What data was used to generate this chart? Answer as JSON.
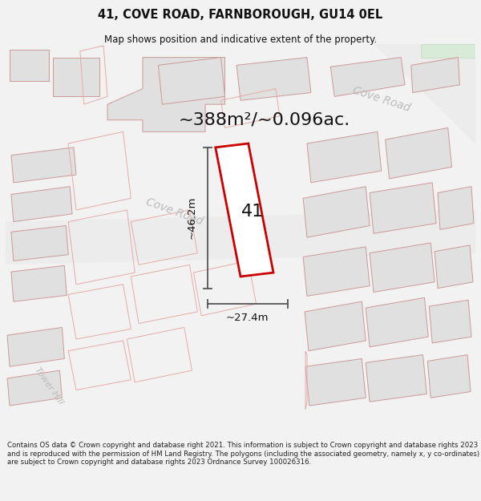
{
  "title": "41, COVE ROAD, FARNBOROUGH, GU14 0EL",
  "subtitle": "Map shows position and indicative extent of the property.",
  "area_text": "~388m²/~0.096ac.",
  "dim_vertical": "~46.2m",
  "dim_horizontal": "~27.4m",
  "label_41": "41",
  "road_label_lower": "Cove Road",
  "road_label_upper": "Cove Road",
  "tower_hill_label": "Tower Hill",
  "footer": "Contains OS data © Crown copyright and database right 2021. This information is subject to Crown copyright and database rights 2023 and is reproduced with the permission of HM Land Registry. The polygons (including the associated geometry, namely x, y co-ordinates) are subject to Crown copyright and database rights 2023 Ordnance Survey 100026316.",
  "bg_color": "#f2f2f2",
  "map_bg": "#ffffff",
  "plot_color": "#cc0000",
  "building_fill": "#e0e0e0",
  "building_edge": "#cc9999",
  "parcel_edge": "#e8aaaa",
  "road_fill": "#eeeeee",
  "road_edge": "#cccccc",
  "green_fill": "#d8ead8",
  "line_color": "#555555",
  "text_color": "#111111",
  "road_text_color": "#bbbbbb",
  "footer_color": "#222222",
  "title_fontsize": 10.5,
  "subtitle_fontsize": 8.5,
  "area_fontsize": 16,
  "label_fontsize": 16,
  "dim_fontsize": 9.5,
  "road_label_fontsize": 10,
  "footer_fontsize": 6.2
}
